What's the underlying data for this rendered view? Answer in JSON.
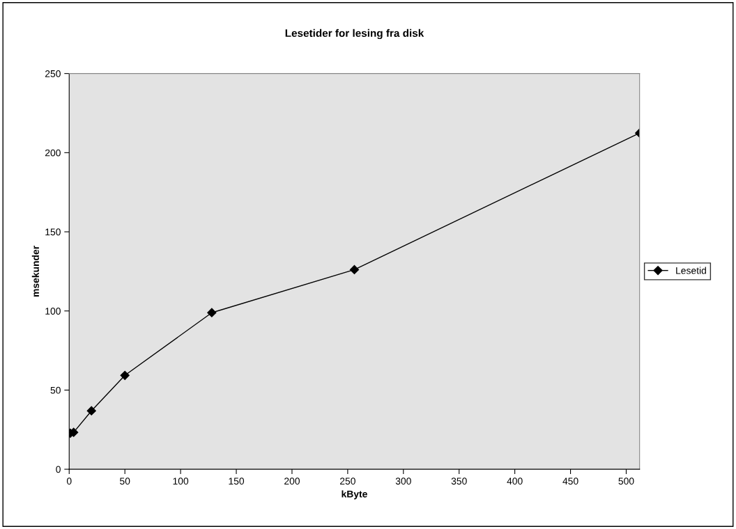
{
  "chart_data": {
    "type": "line",
    "title": "Lesetider for lesing fra disk",
    "xlabel": "kByte",
    "ylabel": "msekunder",
    "series": [
      {
        "name": "Lesetid",
        "color": "#000000",
        "x": [
          1,
          4,
          20,
          50,
          128,
          256,
          512
        ],
        "values": [
          22.8,
          23.3,
          36.9,
          59.3,
          98.9,
          126.1,
          212.4
        ]
      }
    ],
    "xlim": [
      0,
      512
    ],
    "xticks": [
      0,
      50,
      100,
      150,
      200,
      250,
      300,
      350,
      400,
      450,
      500
    ],
    "ylim": [
      0,
      250
    ],
    "yticks": [
      0,
      50,
      100,
      150,
      200,
      250
    ],
    "grid": false,
    "legend": "right",
    "marker": "diamond",
    "line_style": "solid"
  }
}
